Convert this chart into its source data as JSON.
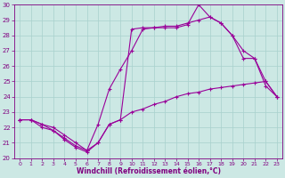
{
  "xlabel": "Windchill (Refroidissement éolien,°C)",
  "xlim": [
    -0.5,
    23.5
  ],
  "ylim": [
    20,
    30
  ],
  "yticks": [
    20,
    21,
    22,
    23,
    24,
    25,
    26,
    27,
    28,
    29,
    30
  ],
  "xticks": [
    0,
    1,
    2,
    3,
    4,
    5,
    6,
    7,
    8,
    9,
    10,
    11,
    12,
    13,
    14,
    15,
    16,
    17,
    18,
    19,
    20,
    21,
    22,
    23
  ],
  "bg_color": "#cce8e4",
  "line_color": "#990099",
  "line1_x": [
    0,
    1,
    2,
    3,
    4,
    5,
    6,
    7,
    8,
    9,
    10,
    11,
    12,
    13,
    14,
    15,
    16,
    17,
    18,
    19,
    20,
    21,
    22,
    23
  ],
  "line1_y": [
    22.5,
    22.5,
    22.2,
    21.8,
    21.3,
    20.8,
    20.5,
    21.0,
    22.2,
    22.5,
    23.0,
    23.2,
    23.5,
    23.7,
    24.0,
    24.2,
    24.3,
    24.5,
    24.6,
    24.7,
    24.8,
    24.9,
    25.0,
    24.0
  ],
  "line2_x": [
    0,
    1,
    2,
    3,
    4,
    5,
    6,
    7,
    8,
    9,
    10,
    11,
    12,
    13,
    14,
    15,
    16,
    17,
    18,
    19,
    20,
    21,
    22,
    23
  ],
  "line2_y": [
    22.5,
    22.5,
    22.2,
    22.0,
    21.5,
    21.0,
    20.5,
    22.2,
    24.5,
    25.8,
    27.0,
    28.4,
    28.5,
    28.5,
    28.5,
    28.7,
    30.0,
    29.2,
    28.8,
    28.0,
    27.0,
    26.5,
    24.7,
    24.0
  ],
  "line3_x": [
    0,
    1,
    2,
    3,
    4,
    5,
    6,
    7,
    8,
    9,
    10,
    11,
    12,
    13,
    14,
    15,
    16,
    17,
    18,
    19,
    20,
    21,
    22,
    23
  ],
  "line3_y": [
    22.5,
    22.5,
    22.0,
    21.8,
    21.2,
    20.7,
    20.4,
    21.0,
    22.2,
    22.5,
    28.4,
    28.5,
    28.5,
    28.6,
    28.6,
    28.8,
    29.0,
    29.2,
    28.8,
    28.0,
    26.5,
    26.5,
    25.0,
    24.0
  ]
}
